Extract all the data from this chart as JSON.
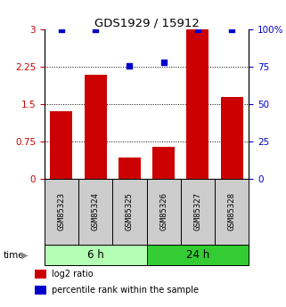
{
  "title": "GDS1929 / 15912",
  "samples": [
    "GSM85323",
    "GSM85324",
    "GSM85325",
    "GSM85326",
    "GSM85327",
    "GSM85328"
  ],
  "bar_heights": [
    1.35,
    2.1,
    0.43,
    0.65,
    3.0,
    1.65
  ],
  "blue_dots": [
    3.0,
    3.0,
    2.28,
    2.35,
    3.0,
    3.0
  ],
  "bar_color": "#cc0000",
  "dot_color": "#0000cc",
  "left_yticks": [
    0,
    0.75,
    1.5,
    2.25,
    3.0
  ],
  "left_ylabels": [
    "0",
    "0.75",
    "1.5",
    "2.25",
    "3"
  ],
  "right_yticks": [
    0,
    25,
    50,
    75,
    100
  ],
  "right_ylabels": [
    "0",
    "25",
    "50",
    "75",
    "100%"
  ],
  "ylim": [
    0,
    3.0
  ],
  "groups": [
    {
      "label": "6 h",
      "indices": [
        0,
        1,
        2
      ],
      "color": "#b3ffb3"
    },
    {
      "label": "24 h",
      "indices": [
        3,
        4,
        5
      ],
      "color": "#33cc33"
    }
  ],
  "time_label": "time",
  "legend": [
    {
      "label": "log2 ratio",
      "color": "#cc0000"
    },
    {
      "label": "percentile rank within the sample",
      "color": "#0000cc"
    }
  ],
  "grid_yticks": [
    0.75,
    1.5,
    2.25
  ],
  "bar_width": 0.65,
  "sample_box_color": "#cccccc",
  "axis_label_color_left": "#cc0000",
  "axis_label_color_right": "#0000cc"
}
